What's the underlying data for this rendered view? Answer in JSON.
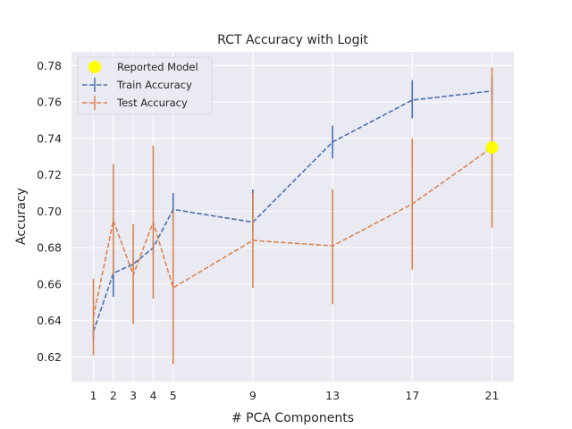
{
  "chart_data": {
    "type": "line",
    "title": "RCT Accuracy with Logit",
    "xlabel": "# PCA Components",
    "ylabel": "Accuracy",
    "x": [
      1,
      2,
      3,
      4,
      5,
      9,
      13,
      17,
      21
    ],
    "x_ticks": [
      1,
      2,
      3,
      4,
      5,
      9,
      13,
      17,
      21
    ],
    "xlim": [
      -0.1,
      22.1
    ],
    "ylim": [
      0.6065,
      0.7875
    ],
    "y_ticks": [
      0.62,
      0.64,
      0.66,
      0.68,
      0.7,
      0.72,
      0.74,
      0.76,
      0.78
    ],
    "y_tick_labels": [
      "0.62",
      "0.64",
      "0.66",
      "0.68",
      "0.70",
      "0.72",
      "0.74",
      "0.76",
      "0.78"
    ],
    "grid": true,
    "legend_position": "top-left",
    "series": [
      {
        "name": "Train Accuracy",
        "color": "#4C72B0",
        "style": "dashed",
        "values": [
          0.634,
          0.666,
          0.671,
          0.68,
          0.701,
          0.694,
          0.738,
          0.761,
          0.766
        ],
        "err_low": [
          0.63,
          0.653,
          0.668,
          0.677,
          0.693,
          0.689,
          0.729,
          0.751,
          0.759
        ],
        "err_high": [
          0.638,
          0.679,
          0.674,
          0.683,
          0.71,
          0.712,
          0.747,
          0.772,
          0.773
        ]
      },
      {
        "name": "Test Accuracy",
        "color": "#DD8452",
        "style": "dashed",
        "values": [
          0.642,
          0.695,
          0.665,
          0.694,
          0.658,
          0.684,
          0.681,
          0.704,
          0.735
        ],
        "err_low": [
          0.621,
          0.665,
          0.638,
          0.652,
          0.616,
          0.658,
          0.649,
          0.668,
          0.691
        ],
        "err_high": [
          0.663,
          0.726,
          0.693,
          0.736,
          0.7,
          0.71,
          0.712,
          0.74,
          0.779
        ]
      }
    ],
    "highlight": {
      "name": "Reported Model",
      "color": "#FFFF00",
      "x": 21,
      "y": 0.735
    }
  }
}
